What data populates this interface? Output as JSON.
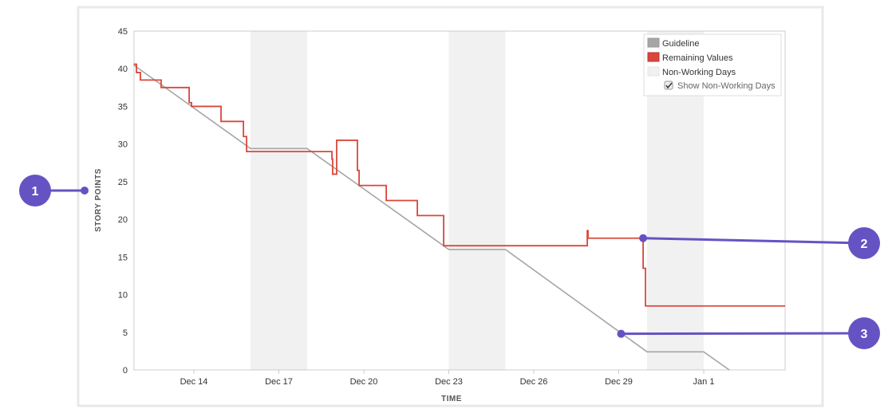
{
  "chart_data": {
    "type": "line",
    "xlabel": "TIME",
    "ylabel": "STORY POINTS",
    "ylim": [
      0,
      45
    ],
    "yticks": [
      0,
      5,
      10,
      15,
      20,
      25,
      30,
      35,
      40,
      45
    ],
    "xlim": [
      "Dec 11 21:00",
      "Jan 3 21:00"
    ],
    "xticks": [
      "Dec 14",
      "Dec 17",
      "Dec 20",
      "Dec 23",
      "Dec 26",
      "Dec 29",
      "Jan 1"
    ],
    "grid": false,
    "legend_position": "top-right",
    "legend": {
      "guideline": "Guideline",
      "remaining": "Remaining Values",
      "nonworking": "Non-Working Days",
      "show_nonworking": "Show Non-Working Days",
      "show_nonworking_checked": true
    },
    "colors": {
      "guideline": "#a6a6a6",
      "remaining": "#d9473a",
      "nonworking": "#f1f1f1",
      "annotation": "#6553c3"
    },
    "non_working_days": [
      [
        "Dec 16 00:00",
        "Dec 18 00:00"
      ],
      [
        "Dec 23 00:00",
        "Dec 25 00:00"
      ],
      [
        "Dec 30 00:00",
        "Jan 1 00:00"
      ]
    ],
    "series": [
      {
        "name": "Guideline",
        "interpolation": "linear",
        "points": [
          [
            "Dec 11 21:00",
            40.5
          ],
          [
            "Dec 16 00:00",
            29.4
          ],
          [
            "Dec 18 00:00",
            29.4
          ],
          [
            "Dec 23 00:00",
            16
          ],
          [
            "Dec 25 00:00",
            16
          ],
          [
            "Dec 30 00:00",
            2.4
          ],
          [
            "Jan 1 00:00",
            2.4
          ],
          [
            "Jan 1 21:40",
            0
          ]
        ]
      },
      {
        "name": "Remaining Values",
        "interpolation": "step-after",
        "points": [
          [
            "Dec 11 21:00",
            40.6
          ],
          [
            "Dec 11 23:20",
            39.5
          ],
          [
            "Dec 12 02:40",
            38.5
          ],
          [
            "Dec 12 20:15",
            37.5
          ],
          [
            "Dec 13 20:00",
            35.5
          ],
          [
            "Dec 13 22:00",
            35
          ],
          [
            "Dec 14 23:00",
            33
          ],
          [
            "Dec 15 18:00",
            31
          ],
          [
            "Dec 15 20:40",
            29
          ],
          [
            "Dec 18 21:00",
            28
          ],
          [
            "Dec 18 21:35",
            26
          ],
          [
            "Dec 19 01:00",
            30.5
          ],
          [
            "Dec 19 18:35",
            26.5
          ],
          [
            "Dec 19 20:00",
            24.5
          ],
          [
            "Dec 20 19:00",
            22.5
          ],
          [
            "Dec 21 21:20",
            20.5
          ],
          [
            "Dec 22 19:40",
            16.5
          ],
          [
            "Dec 27 21:20",
            18.5
          ],
          [
            "Dec 27 22:00",
            17.5
          ],
          [
            "Dec 29 20:40",
            13.5
          ],
          [
            "Dec 29 22:40",
            8.5
          ],
          [
            "Jan 3 21:00",
            8.5
          ]
        ]
      }
    ]
  },
  "annotations": [
    {
      "label": "1",
      "target": "y-axis label"
    },
    {
      "label": "2",
      "target": "Remaining Values",
      "at": [
        "Dec 29 20:40",
        17.5
      ]
    },
    {
      "label": "3",
      "target": "Guideline",
      "at": [
        "Dec 29 02:00",
        4.8
      ]
    }
  ]
}
